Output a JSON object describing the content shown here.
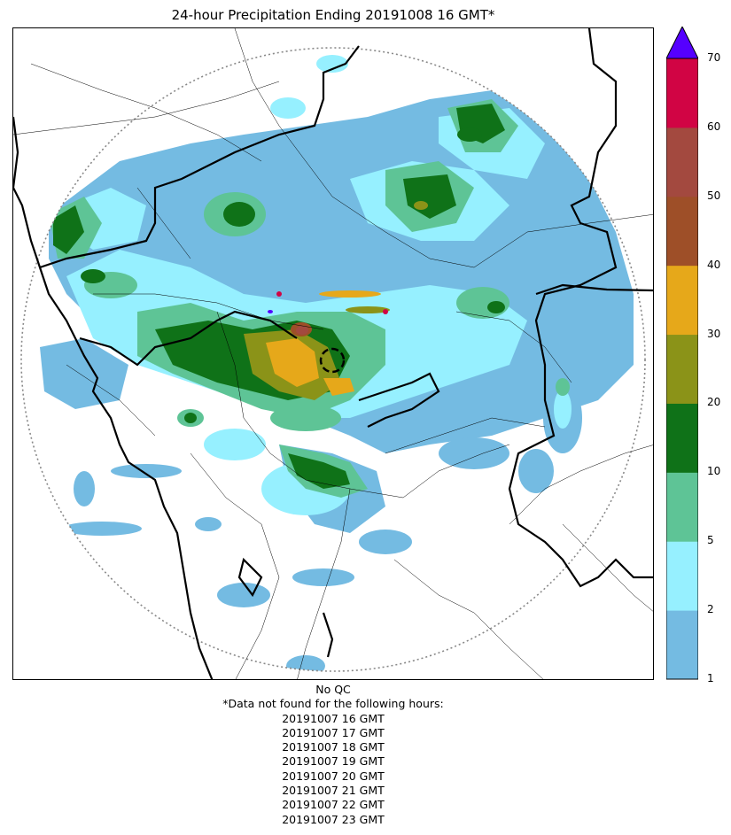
{
  "title": "24-hour Precipitation Ending 20191008 16 GMT*",
  "colorbar": {
    "ticks": [
      "1",
      "2",
      "5",
      "10",
      "20",
      "30",
      "40",
      "50",
      "60",
      "70"
    ],
    "colors": [
      "#74bbe2",
      "#96f0ff",
      "#5ec496",
      "#0f7218",
      "#8b9318",
      "#e6a81a",
      "#9e4f28",
      "#a3493f",
      "#d10444"
    ],
    "extend_color": "#5500ff"
  },
  "footer": {
    "qc": "No QC",
    "note": "*Data not found for the following hours:",
    "hours": [
      "20191007 16 GMT",
      "20191007 17 GMT",
      "20191007 18 GMT",
      "20191007 19 GMT",
      "20191007 20 GMT",
      "20191007 21 GMT",
      "20191007 22 GMT",
      "20191007 23 GMT"
    ]
  }
}
